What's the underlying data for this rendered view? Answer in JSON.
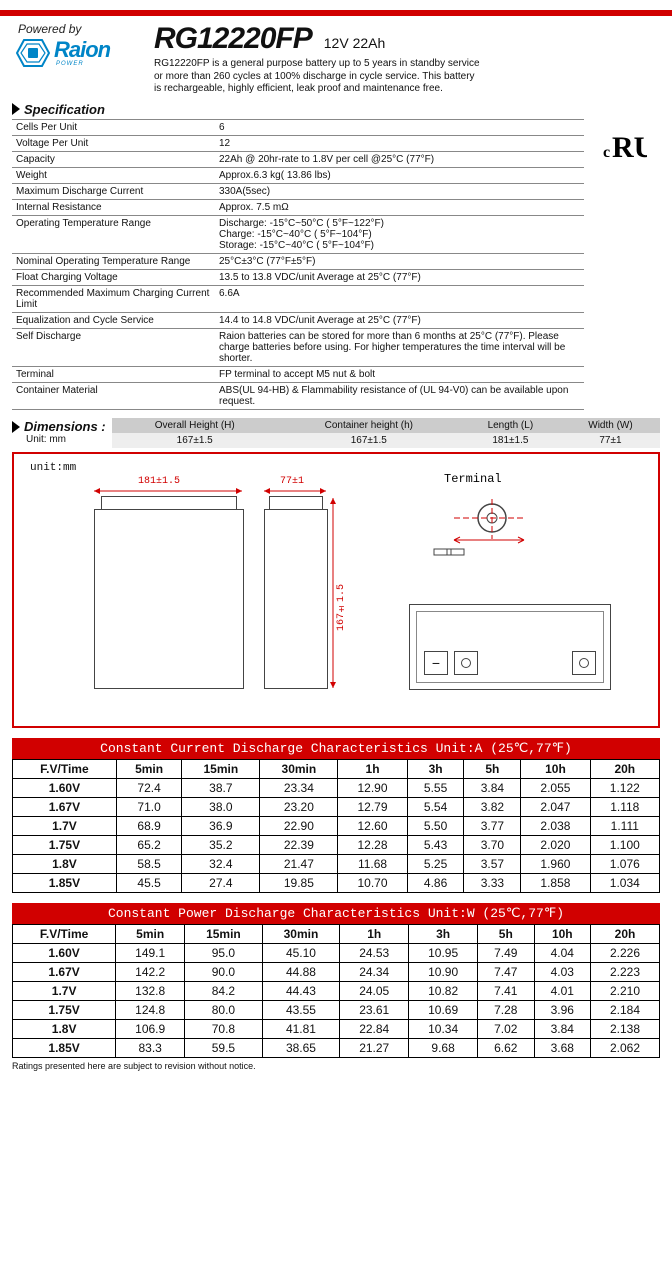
{
  "header": {
    "powered_by": "Powered by",
    "brand": "Raion",
    "brand_sub": "POWER",
    "model": "RG12220FP",
    "rating": "12V  22Ah",
    "description": "RG12220FP is a general purpose battery up to 5 years in standby service or more than 260 cycles at 100% discharge in cycle service. This battery is rechargeable, highly efficient, leak proof and maintenance free.",
    "logo_color": "#0085c7"
  },
  "ul_mark": "ᵣU",
  "spec_title": "Specification",
  "spec": [
    {
      "label": "Cells Per Unit",
      "value": "6"
    },
    {
      "label": "Voltage Per Unit",
      "value": "12"
    },
    {
      "label": "Capacity",
      "value": "22Ah @ 20hr-rate to 1.8V per cell @25°C (77°F)"
    },
    {
      "label": "Weight",
      "value": "Approx.6.3 kg( 13.86 lbs)"
    },
    {
      "label": "Maximum Discharge Current",
      "value": "330A(5sec)"
    },
    {
      "label": "Internal Resistance",
      "value": "Approx. 7.5 mΩ"
    },
    {
      "label": "Operating Temperature Range",
      "value": "Discharge: -15°C~50°C ( 5°F~122°F)\nCharge: -15°C~40°C ( 5°F~104°F)\nStorage: -15°C~40°C ( 5°F~104°F)"
    },
    {
      "label": "Nominal Operating Temperature Range",
      "value": "25°C±3°C (77°F±5°F)"
    },
    {
      "label": "Float Charging Voltage",
      "value": "13.5 to 13.8 VDC/unit Average at  25°C (77°F)"
    },
    {
      "label": "Recommended Maximum Charging Current Limit",
      "value": "6.6A"
    },
    {
      "label": "Equalization and Cycle Service",
      "value": "14.4 to 14.8 VDC/unit Average at 25°C (77°F)"
    },
    {
      "label": "Self Discharge",
      "value": "Raion batteries can be stored for more than 6 months at 25°C (77°F). Please charge batteries before using.  For higher temperatures the time interval will be shorter."
    },
    {
      "label": "Terminal",
      "value": "FP terminal to accept M5 nut & bolt"
    },
    {
      "label": "Container Material",
      "value": "ABS(UL 94-HB)  &  Flammability resistance of (UL 94-V0) can be available upon request."
    }
  ],
  "dims_title": "Dimensions :",
  "dims_unit": "Unit: mm",
  "dims_headers": [
    "Overall Height (H)",
    "Container height (h)",
    "Length (L)",
    "Width (W)"
  ],
  "dims_values": [
    "167±1.5",
    "167±1.5",
    "181±1.5",
    "77±1"
  ],
  "diagram": {
    "unit_label": "unit:mm",
    "length": "181±1.5",
    "width": "77±1",
    "height": "167±1.5",
    "terminal_label": "Terminal",
    "border_color": "#d10000"
  },
  "current_title": "Constant Current Discharge Characteristics   Unit:A (25℃,77℉)",
  "power_title": "Constant Power Discharge Characteristics   Unit:W (25℃,77℉)",
  "time_cols": [
    "F.V/Time",
    "5min",
    "15min",
    "30min",
    "1h",
    "3h",
    "5h",
    "10h",
    "20h"
  ],
  "row_headers": [
    "1.60V",
    "1.67V",
    "1.7V",
    "1.75V",
    "1.8V",
    "1.85V"
  ],
  "current_rows": [
    [
      "72.4",
      "38.7",
      "23.34",
      "12.90",
      "5.55",
      "3.84",
      "2.055",
      "1.122"
    ],
    [
      "71.0",
      "38.0",
      "23.20",
      "12.79",
      "5.54",
      "3.82",
      "2.047",
      "1.118"
    ],
    [
      "68.9",
      "36.9",
      "22.90",
      "12.60",
      "5.50",
      "3.77",
      "2.038",
      "1.111"
    ],
    [
      "65.2",
      "35.2",
      "22.39",
      "12.28",
      "5.43",
      "3.70",
      "2.020",
      "1.100"
    ],
    [
      "58.5",
      "32.4",
      "21.47",
      "11.68",
      "5.25",
      "3.57",
      "1.960",
      "1.076"
    ],
    [
      "45.5",
      "27.4",
      "19.85",
      "10.70",
      "4.86",
      "3.33",
      "1.858",
      "1.034"
    ]
  ],
  "power_rows": [
    [
      "149.1",
      "95.0",
      "45.10",
      "24.53",
      "10.95",
      "7.49",
      "4.04",
      "2.226"
    ],
    [
      "142.2",
      "90.0",
      "44.88",
      "24.34",
      "10.90",
      "7.47",
      "4.03",
      "2.223"
    ],
    [
      "132.8",
      "84.2",
      "44.43",
      "24.05",
      "10.82",
      "7.41",
      "4.01",
      "2.210"
    ],
    [
      "124.8",
      "80.0",
      "43.55",
      "23.61",
      "10.69",
      "7.28",
      "3.96",
      "2.184"
    ],
    [
      "106.9",
      "70.8",
      "41.81",
      "22.84",
      "10.34",
      "7.02",
      "3.84",
      "2.138"
    ],
    [
      "83.3",
      "59.5",
      "38.65",
      "21.27",
      "9.68",
      "6.62",
      "3.68",
      "2.062"
    ]
  ],
  "footnote": "Ratings presented here are subject to revision without notice.",
  "colors": {
    "red": "#d10000",
    "grid_gray": "#888888",
    "header_gray_dark": "#cccccc",
    "header_gray_light": "#eeeeee"
  }
}
